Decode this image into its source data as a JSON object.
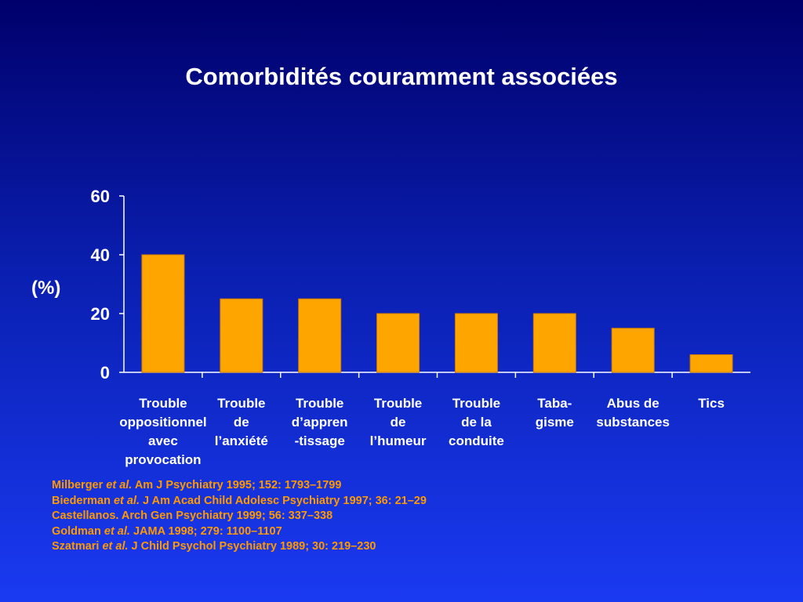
{
  "slide": {
    "title": "Comorbidités couramment associées",
    "ylabel_text": "(%)"
  },
  "chart_data": {
    "type": "bar",
    "title": "Comorbidités couramment associées",
    "ylabel": "(%)",
    "xlabel": "",
    "ylim": [
      0,
      60
    ],
    "yticks": [
      0,
      20,
      40,
      60
    ],
    "categories": [
      [
        "Trouble",
        "oppositionnel",
        "avec",
        "provocation"
      ],
      [
        "Trouble",
        "de",
        "l’anxiété"
      ],
      [
        "Trouble",
        "d’appren",
        "-tissage"
      ],
      [
        "Trouble",
        "de",
        "l’humeur"
      ],
      [
        "Trouble",
        "de la",
        "conduite"
      ],
      [
        "Taba-",
        "gisme"
      ],
      [
        "Abus de",
        "substances"
      ],
      [
        "Tics"
      ]
    ],
    "values": [
      40,
      25,
      25,
      20,
      20,
      20,
      15,
      6
    ],
    "bar_color": "#ffa500",
    "grid": false,
    "legend": "none"
  },
  "references": [
    {
      "author": "Milberger",
      "etal": "et al.",
      "citation": " Am J Psychiatry 1995; 152: 1793–1799"
    },
    {
      "author": "Biederman",
      "etal": "et al.",
      "citation": " J Am Acad Child Adolesc Psychiatry 1997; 36: 21–29"
    },
    {
      "author": "Castellanos.",
      "etal": "",
      "citation": " Arch Gen Psychiatry 1999; 56: 337–338"
    },
    {
      "author": "Goldman",
      "etal": "et al.",
      "citation": " JAMA 1998; 279: 1100–1107"
    },
    {
      "author": "Szatmari",
      "etal": "et al.",
      "citation": " J Child Psychol Psychiatry 1989; 30: 219–230"
    }
  ],
  "colors": {
    "background_top": "#00006b",
    "background_bottom": "#1a3af2",
    "bar": "#ffa500",
    "reference_text": "#ff9900",
    "axis": "#ffffff"
  }
}
